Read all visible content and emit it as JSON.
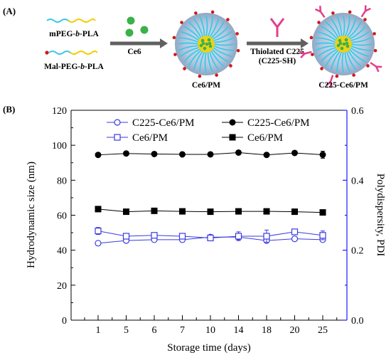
{
  "panel_a": {
    "label": "(A)",
    "polymer1": {
      "prefix": "mPEG-",
      "italic": "b",
      "suffix": "-PLA"
    },
    "polymer2": {
      "prefix": "Mal-PEG-",
      "italic": "b",
      "suffix": "-PLA"
    },
    "arrow1_label": "Ce6",
    "arrow2_label_line1": "Thiolated C225",
    "arrow2_label_line2": "(C225-SH)",
    "micelle1_label": "Ce6/PM",
    "micelle2_label": "C225-Ce6/PM",
    "colors": {
      "peg": "#3cc8e8",
      "pla": "#f0d000",
      "maleimide": "#d01818",
      "ce6": "#3cb04a",
      "antibody": "#e23f8a",
      "arrow": "#606060"
    }
  },
  "panel_b": {
    "label": "(B)"
  },
  "chart_data": {
    "type": "scatter",
    "xlabel": "Storage time (days)",
    "ylabel": "Hydrodynamic size (nm)",
    "y2label": "Polydispersity, PDI",
    "categories": [
      "1",
      "5",
      "6",
      "7",
      "10",
      "14",
      "18",
      "20",
      "25"
    ],
    "ylim": [
      0,
      120
    ],
    "y2lim": [
      0.0,
      0.6
    ],
    "yticks": [
      "0",
      "20",
      "40",
      "60",
      "80",
      "100",
      "120"
    ],
    "y2ticks": [
      "0.0",
      "0.2",
      "0.4",
      "0.6"
    ],
    "legend_position": "top",
    "axis_colors": {
      "left": "#000000",
      "right": "#1a1aff"
    },
    "series": [
      {
        "name": "C225-Ce6/PM",
        "axis": "left",
        "marker": "circle-open",
        "color": "#3a3ae0",
        "values": [
          44,
          45.5,
          46,
          46,
          47.5,
          47.5,
          45.5,
          46.5,
          46
        ],
        "errors": [
          1,
          1,
          1,
          1,
          1,
          1.5,
          1,
          1,
          1
        ]
      },
      {
        "name": "Ce6/PM",
        "axis": "left",
        "marker": "square-open",
        "color": "#3a3ae0",
        "values": [
          51,
          48,
          48.5,
          48,
          47,
          48,
          48,
          50.5,
          48.5
        ],
        "errors": [
          2,
          1.5,
          1.5,
          1.5,
          1.5,
          2.5,
          3.5,
          1.5,
          2.5
        ]
      },
      {
        "name": "C225-Ce6/PM",
        "axis": "left",
        "marker": "circle-filled",
        "color": "#000000",
        "values": [
          94.5,
          95.3,
          95,
          94.8,
          94.8,
          95.8,
          94.5,
          95.6,
          94.6
        ],
        "errors": [
          0.5,
          0.6,
          0.5,
          0.5,
          0.5,
          0.7,
          0.6,
          0.6,
          2
        ]
      },
      {
        "name": "Ce6/PM",
        "axis": "left",
        "marker": "square-filled",
        "color": "#000000",
        "values": [
          63.5,
          62,
          62.5,
          62.2,
          62,
          62.2,
          62.2,
          62,
          61.6
        ],
        "errors": [
          0.5,
          0.5,
          0.5,
          0.5,
          0.5,
          0.5,
          0.5,
          0.5,
          0.5
        ]
      }
    ]
  }
}
